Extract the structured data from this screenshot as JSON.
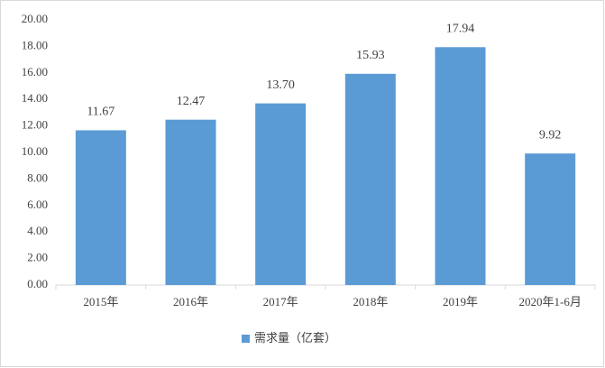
{
  "chart_data": {
    "type": "bar",
    "categories": [
      "2015年",
      "2016年",
      "2017年",
      "2018年",
      "2019年",
      "2020年1-6月"
    ],
    "series": [
      {
        "name": "需求量（亿套）",
        "color": "#5b9bd5",
        "values": [
          11.67,
          12.47,
          13.7,
          15.93,
          17.94,
          9.92
        ],
        "value_labels": [
          "11.67",
          "12.47",
          "13.70",
          "15.93",
          "17.94",
          "9.92"
        ]
      }
    ],
    "ylim": [
      0,
      20
    ],
    "yticks": [
      {
        "value": 0,
        "label": "0.00"
      },
      {
        "value": 2,
        "label": "2.00"
      },
      {
        "value": 4,
        "label": "4.00"
      },
      {
        "value": 6,
        "label": "6.00"
      },
      {
        "value": 8,
        "label": "8.00"
      },
      {
        "value": 10,
        "label": "10.00"
      },
      {
        "value": 12,
        "label": "12.00"
      },
      {
        "value": 14,
        "label": "14.00"
      },
      {
        "value": 16,
        "label": "16.00"
      },
      {
        "value": 18,
        "label": "18.00"
      },
      {
        "value": 20,
        "label": "20.00"
      }
    ],
    "grid": false,
    "legend": "bottom"
  }
}
